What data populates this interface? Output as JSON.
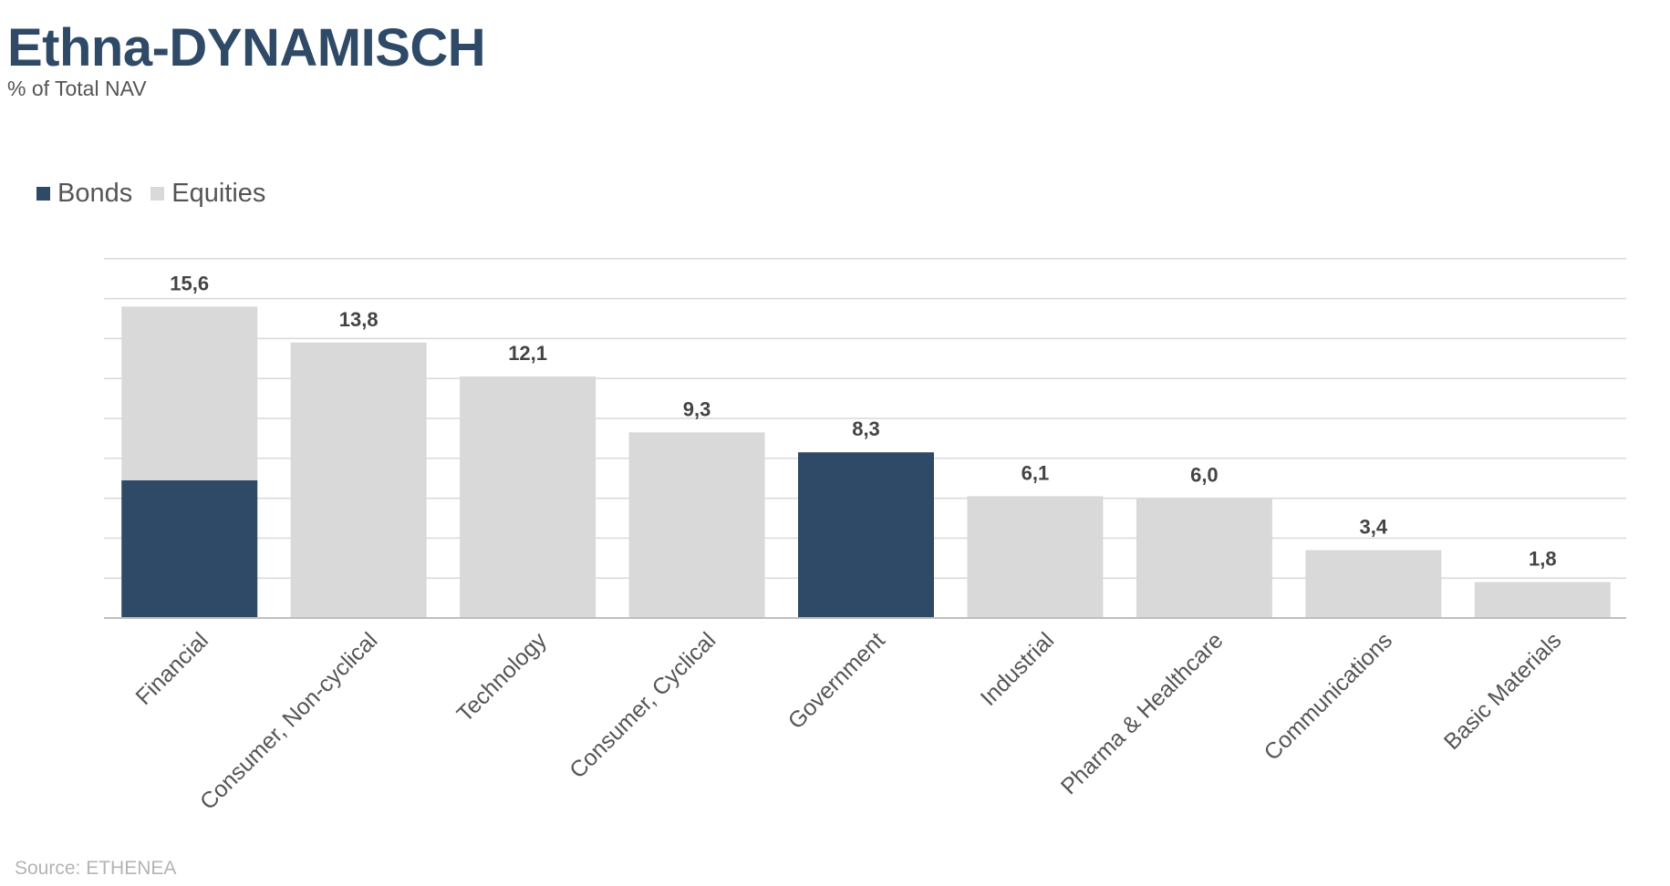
{
  "header": {
    "title": "Ethna-DYNAMISCH",
    "subtitle": "% of Total NAV"
  },
  "footer": {
    "source": "Source: ETHENEA"
  },
  "chart_data": {
    "type": "bar",
    "stacked": true,
    "categories": [
      "Financial",
      "Consumer, Non-cyclical",
      "Technology",
      "Consumer, Cyclical",
      "Government",
      "Industrial",
      "Pharma & Healthcare",
      "Communications",
      "Basic Materials"
    ],
    "series": [
      {
        "name": "Bonds",
        "color": "#2e4a67",
        "values": [
          6.9,
          0,
          0,
          0,
          8.3,
          0,
          0,
          0,
          0
        ]
      },
      {
        "name": "Equities",
        "color": "#d9d9d9",
        "values": [
          8.7,
          13.8,
          12.1,
          9.3,
          0,
          6.1,
          6.0,
          3.4,
          1.8
        ]
      }
    ],
    "totals_labels": [
      "15,6",
      "13,8",
      "12,1",
      "9,3",
      "8,3",
      "6,1",
      "6,0",
      "3,4",
      "1,8"
    ],
    "totals": [
      15.6,
      13.8,
      12.1,
      9.3,
      8.3,
      6.1,
      6.0,
      3.4,
      1.8
    ],
    "ylim": [
      0,
      18
    ],
    "grid_step": 2,
    "grid": true,
    "legend": "top-left",
    "xlabel": "",
    "ylabel": ""
  }
}
